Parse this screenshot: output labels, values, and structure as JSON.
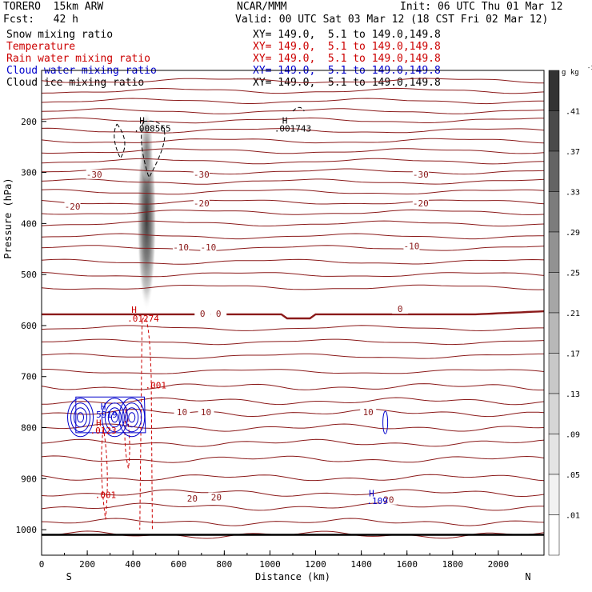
{
  "header": {
    "model": "TORERO  15km ARW",
    "center": "NCAR/MMM",
    "init": "Init: 06 UTC Thu 01 Mar 12",
    "fcst": "Fcst:   42 h",
    "valid": "Valid: 00 UTC Sat 03 Mar 12 (18 CST Fri 02 Mar 12)"
  },
  "fields": [
    {
      "name": "Snow mixing ratio",
      "xy": "XY= 149.0,  5.1 to 149.0,149.8",
      "color": "#000000"
    },
    {
      "name": "Temperature",
      "xy": "XY= 149.0,  5.1 to 149.0,149.8",
      "color": "#cc0000"
    },
    {
      "name": "Rain water mixing ratio",
      "xy": "XY= 149.0,  5.1 to 149.0,149.8",
      "color": "#cc0000"
    },
    {
      "name": "Cloud water mixing ratio",
      "xy": "XY= 149.0,  5.1 to 149.0,149.8",
      "color": "#0000cc"
    },
    {
      "name": "Cloud ice mixing ratio",
      "xy": "XY= 149.0,  5.1 to 149.0,149.8",
      "color": "#000000"
    }
  ],
  "chart_data": {
    "type": "heatmap",
    "title": "",
    "xlabel": "Distance (km)",
    "ylabel": "Pressure (hPa)",
    "xlim": [
      0,
      2200
    ],
    "ylim": [
      1050,
      100
    ],
    "x_ticks": [
      0,
      200,
      400,
      600,
      800,
      1000,
      1200,
      1400,
      1600,
      1800,
      2000
    ],
    "y_ticks": [
      200,
      300,
      400,
      500,
      600,
      700,
      800,
      900,
      1000
    ],
    "x_endpoints": {
      "left": "S",
      "right": "N"
    },
    "colorbar": {
      "unit": "g kg",
      "unit_exp": "-1",
      "levels": [
        ".01",
        ".05",
        ".09",
        ".13",
        ".17",
        ".21",
        ".25",
        ".29",
        ".33",
        ".37",
        ".41"
      ],
      "colors": [
        "#ffffff",
        "#f2f2f2",
        "#e4e4e4",
        "#d6d6d6",
        "#c8c8c8",
        "#b8b8b8",
        "#a6a6a6",
        "#929292",
        "#7c7c7c",
        "#646464",
        "#4a4a4a"
      ]
    },
    "snow_shading": [
      {
        "x": 460,
        "p": 400,
        "value": 0.45
      },
      {
        "x": 460,
        "p": 300,
        "value": 0.2
      },
      {
        "x": 460,
        "p": 500,
        "value": 0.15
      }
    ],
    "temperature_labels": [
      {
        "x": 230,
        "p": 305,
        "text": "-30"
      },
      {
        "x": 700,
        "p": 305,
        "text": "-30"
      },
      {
        "x": 1660,
        "p": 305,
        "text": "-30"
      },
      {
        "x": 135,
        "p": 368,
        "text": "-20"
      },
      {
        "x": 700,
        "p": 362,
        "text": "-20"
      },
      {
        "x": 1660,
        "p": 362,
        "text": "-20"
      },
      {
        "x": 610,
        "p": 448,
        "text": "-10"
      },
      {
        "x": 730,
        "p": 448,
        "text": "-10"
      },
      {
        "x": 1620,
        "p": 446,
        "text": "-10"
      },
      {
        "x": 705,
        "p": 578,
        "text": "0"
      },
      {
        "x": 775,
        "p": 578,
        "text": "0"
      },
      {
        "x": 1570,
        "p": 569,
        "text": "0"
      },
      {
        "x": 615,
        "p": 771,
        "text": "10"
      },
      {
        "x": 720,
        "p": 771,
        "text": "10"
      },
      {
        "x": 1430,
        "p": 771,
        "text": "10"
      },
      {
        "x": 660,
        "p": 940,
        "text": "20"
      },
      {
        "x": 765,
        "p": 938,
        "text": "20"
      },
      {
        "x": 1520,
        "p": 943,
        "text": "20"
      }
    ],
    "annotations": [
      {
        "x": 440,
        "p": 204,
        "text": "H",
        "color": "#000000"
      },
      {
        "x": 485,
        "p": 220,
        "text": ".008565",
        "color": "#000000"
      },
      {
        "x": 1065,
        "p": 204,
        "text": "H",
        "color": "#000000"
      },
      {
        "x": 1100,
        "p": 220,
        "text": ".001743",
        "color": "#000000"
      },
      {
        "x": 405,
        "p": 575,
        "text": "H",
        "color": "#cc0000"
      },
      {
        "x": 445,
        "p": 592,
        "text": ".01274",
        "color": "#cc0000"
      },
      {
        "x": 500,
        "p": 723,
        "text": ".001",
        "color": "#cc0000"
      },
      {
        "x": 270,
        "p": 765,
        "text": "H",
        "color": "#0000cc"
      },
      {
        "x": 285,
        "p": 780,
        "text": "5919",
        "color": "#0000cc"
      },
      {
        "x": 250,
        "p": 797,
        "text": "H",
        "color": "#cc0000"
      },
      {
        "x": 270,
        "p": 812,
        "text": ".0123",
        "color": "#cc0000"
      },
      {
        "x": 280,
        "p": 938,
        "text": ".001",
        "color": "#cc0000"
      },
      {
        "x": 1445,
        "p": 935,
        "text": "H",
        "color": "#0000cc"
      },
      {
        "x": 1470,
        "p": 950,
        "text": ".109",
        "color": "#0000cc"
      }
    ]
  }
}
